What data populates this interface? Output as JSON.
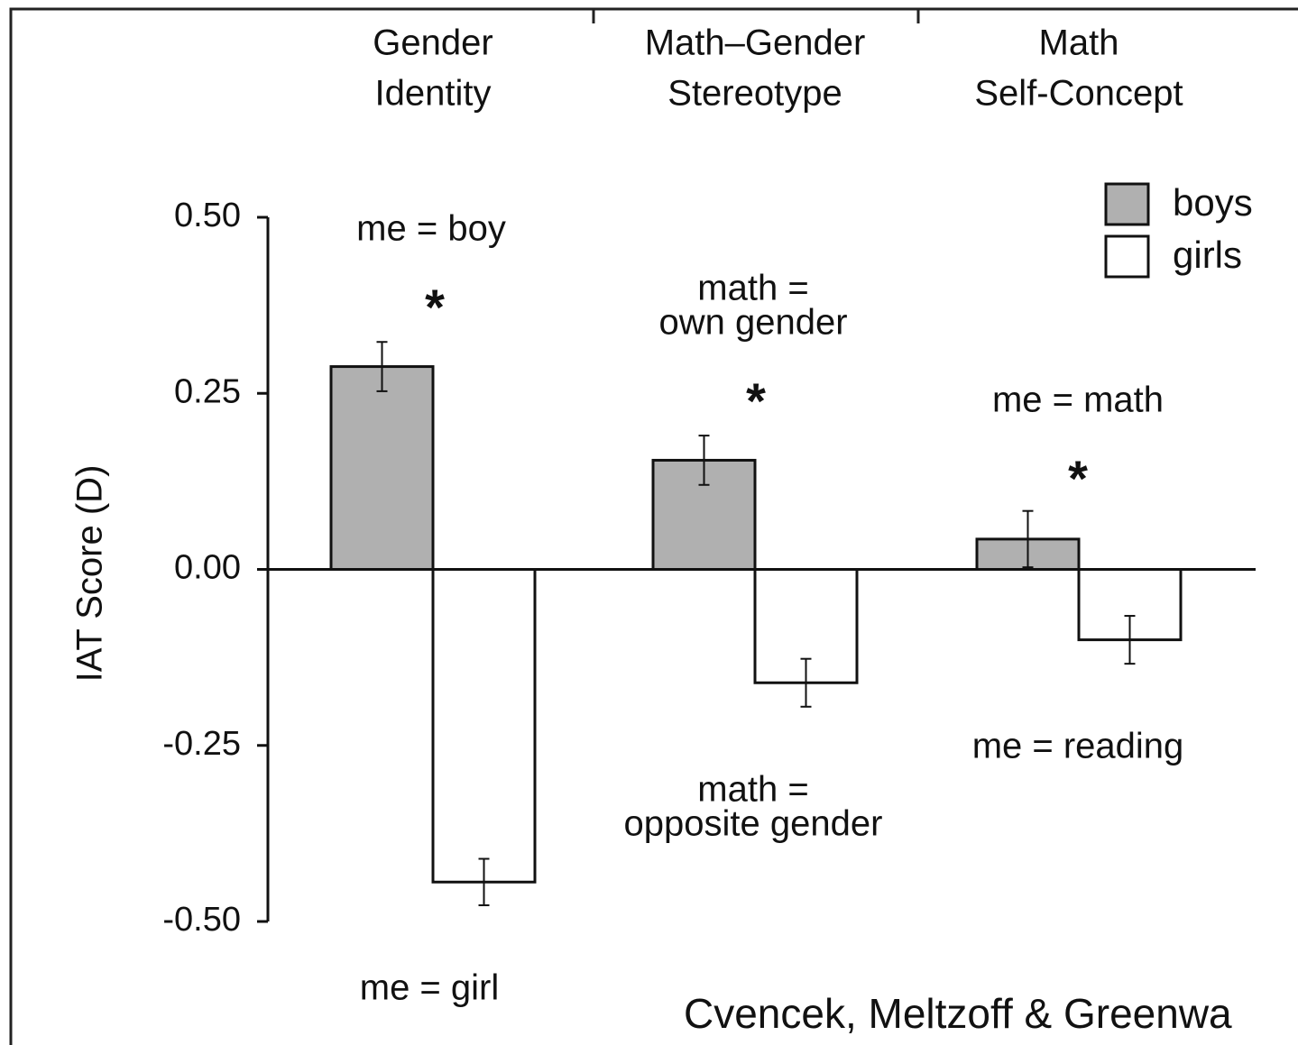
{
  "chart_data": {
    "type": "bar",
    "categories": [
      [
        "Gender",
        "Identity"
      ],
      [
        "Math–Gender",
        "Stereotype"
      ],
      [
        "Math",
        "Self-Concept"
      ]
    ],
    "series": [
      {
        "name": "boys",
        "color": "#b0b0b0",
        "values": [
          0.288,
          0.155,
          0.043
        ],
        "errors": [
          0.035,
          0.035,
          0.04
        ]
      },
      {
        "name": "girls",
        "color": "#ffffff",
        "values": [
          -0.444,
          -0.161,
          -0.1
        ],
        "errors": [
          0.033,
          0.034,
          0.034
        ]
      }
    ],
    "ylabel": "IAT Score (D)",
    "ylim": [
      -0.5,
      0.5
    ],
    "yticks": [
      {
        "value": 0.5,
        "label": "0.50"
      },
      {
        "value": 0.25,
        "label": "0.25"
      },
      {
        "value": 0,
        "label": "0.00"
      },
      {
        "value": -0.25,
        "label": "-0.25"
      },
      {
        "value": -0.5,
        "label": "-0.50"
      }
    ],
    "legend": "top-right",
    "annotations": [
      [
        "me = boy"
      ],
      [
        "*"
      ],
      [
        "me = girl"
      ],
      [
        "math =",
        "own gender"
      ],
      [
        "*"
      ],
      [
        "math =",
        "opposite gender"
      ],
      [
        "me = math"
      ],
      [
        "*"
      ],
      [
        "me = reading"
      ]
    ],
    "source": "Cvencek, Meltzoff & Greenwa"
  }
}
